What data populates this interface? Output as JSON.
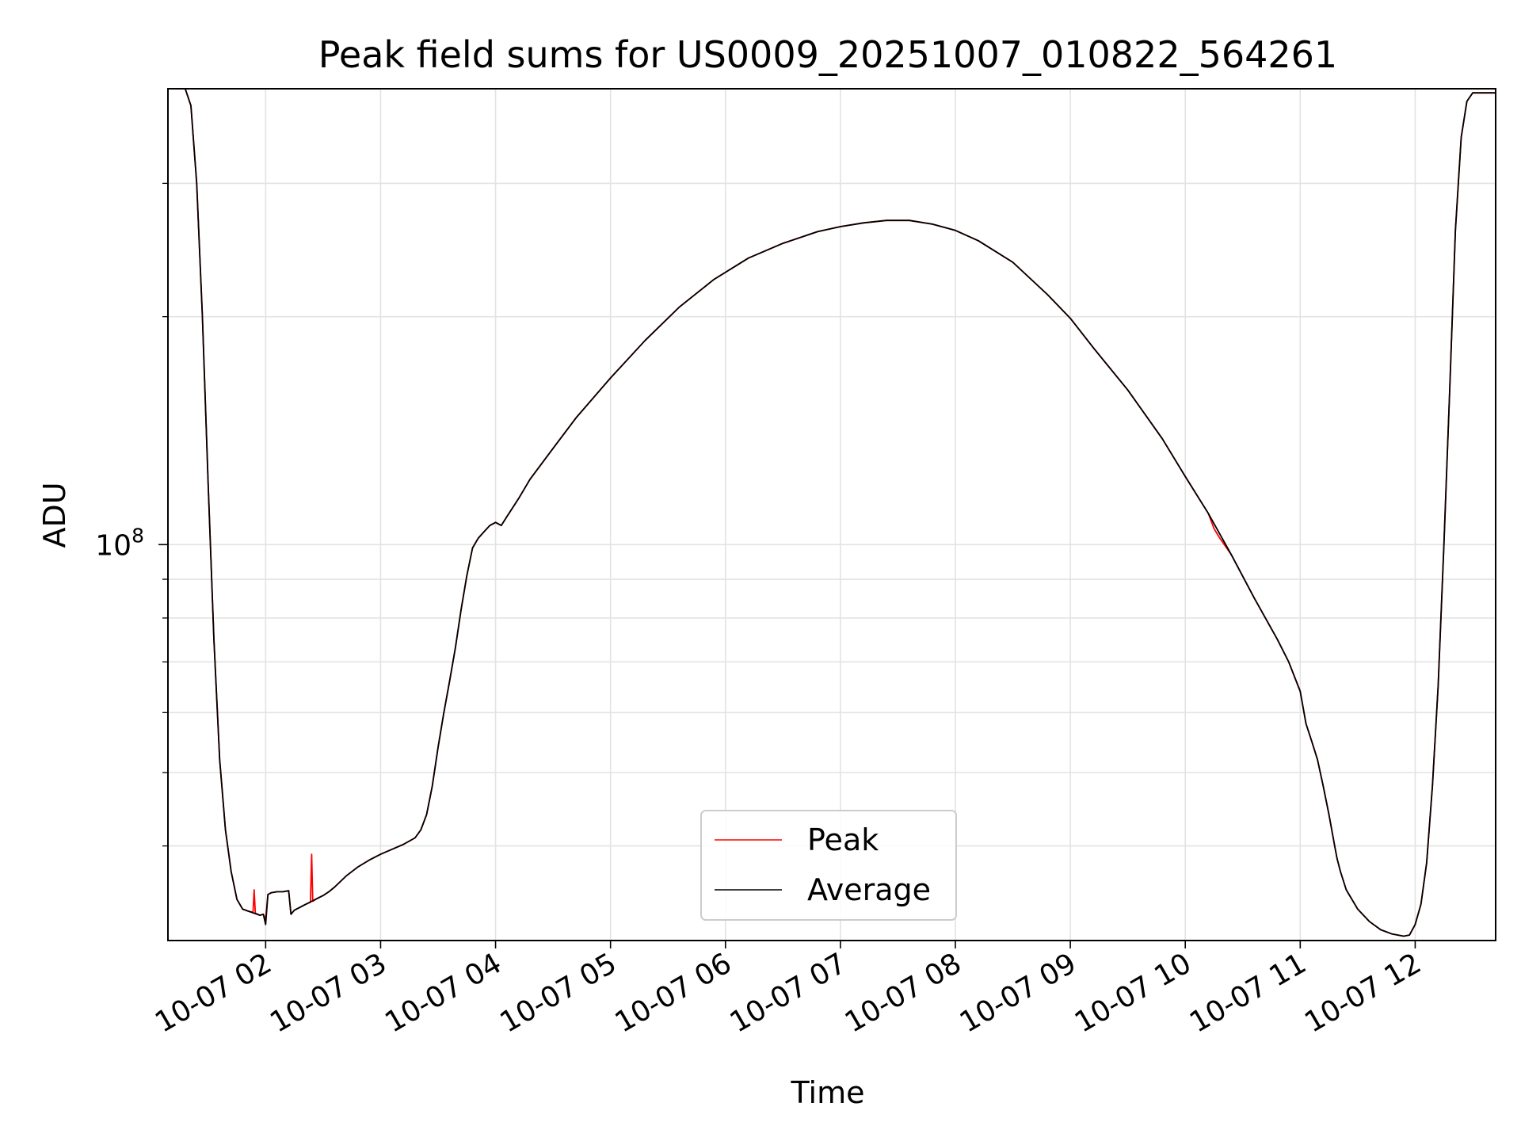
{
  "chart_data": {
    "type": "line",
    "title": "Peak field sums for US0009_20251007_010822_564261",
    "xlabel": "Time",
    "ylabel": "ADU",
    "yscale": "log",
    "ylim": [
      30000000,
      400000000
    ],
    "grid": true,
    "legend_position": "lower center",
    "xlim": [
      1.15,
      12.7
    ],
    "x_ticks": [
      {
        "value": 2,
        "label": "10-07 02"
      },
      {
        "value": 3,
        "label": "10-07 03"
      },
      {
        "value": 4,
        "label": "10-07 04"
      },
      {
        "value": 5,
        "label": "10-07 05"
      },
      {
        "value": 6,
        "label": "10-07 06"
      },
      {
        "value": 7,
        "label": "10-07 07"
      },
      {
        "value": 8,
        "label": "10-07 08"
      },
      {
        "value": 9,
        "label": "10-07 09"
      },
      {
        "value": 10,
        "label": "10-07 10"
      },
      {
        "value": 11,
        "label": "10-07 11"
      },
      {
        "value": 12,
        "label": "10-07 12"
      }
    ],
    "y_major_ticks": [
      {
        "value": 100000000,
        "base": "10",
        "exp": "8"
      }
    ],
    "y_minor_ticks": [
      40000000,
      50000000,
      60000000,
      70000000,
      80000000,
      90000000,
      200000000,
      300000000
    ],
    "series": [
      {
        "name": "Average",
        "color": "#000000",
        "x": [
          1.15,
          1.3,
          1.35,
          1.4,
          1.45,
          1.5,
          1.55,
          1.6,
          1.65,
          1.7,
          1.75,
          1.8,
          1.85,
          1.9,
          1.95,
          1.98,
          2.0,
          2.02,
          2.05,
          2.1,
          2.15,
          2.2,
          2.22,
          2.25,
          2.3,
          2.35,
          2.4,
          2.45,
          2.5,
          2.55,
          2.6,
          2.7,
          2.8,
          2.9,
          3.0,
          3.1,
          3.2,
          3.3,
          3.35,
          3.4,
          3.45,
          3.5,
          3.55,
          3.6,
          3.65,
          3.7,
          3.75,
          3.8,
          3.85,
          3.9,
          3.95,
          4.0,
          4.05,
          4.1,
          4.2,
          4.3,
          4.5,
          4.7,
          5.0,
          5.3,
          5.6,
          5.9,
          6.2,
          6.5,
          6.8,
          7.0,
          7.2,
          7.4,
          7.6,
          7.8,
          8.0,
          8.2,
          8.5,
          8.8,
          9.0,
          9.2,
          9.5,
          9.8,
          10.0,
          10.2,
          10.4,
          10.6,
          10.8,
          10.9,
          11.0,
          11.05,
          11.1,
          11.15,
          11.2,
          11.25,
          11.3,
          11.32,
          11.35,
          11.4,
          11.5,
          11.6,
          11.7,
          11.8,
          11.9,
          11.95,
          12.0,
          12.05,
          12.1,
          12.15,
          12.2,
          12.25,
          12.3,
          12.35,
          12.4,
          12.45,
          12.5,
          12.55,
          12.6,
          12.7
        ],
        "y": [
          400000000,
          400000000,
          380000000,
          300000000,
          200000000,
          120000000,
          75000000,
          52000000,
          42000000,
          37000000,
          34000000,
          33000000,
          32800000,
          32600000,
          32400000,
          32500000,
          31500000,
          34500000,
          34700000,
          34800000,
          34800000,
          34900000,
          32500000,
          32900000,
          33200000,
          33500000,
          33800000,
          34100000,
          34400000,
          34800000,
          35300000,
          36500000,
          37500000,
          38300000,
          39000000,
          39600000,
          40200000,
          41000000,
          42000000,
          44000000,
          48000000,
          54000000,
          60000000,
          66000000,
          73000000,
          82000000,
          91000000,
          99000000,
          102000000,
          104000000,
          106000000,
          107000000,
          106000000,
          109000000,
          115000000,
          122000000,
          134000000,
          147000000,
          166000000,
          186000000,
          206000000,
          224000000,
          239000000,
          250000000,
          259000000,
          263000000,
          266000000,
          268000000,
          268000000,
          265000000,
          260000000,
          252000000,
          236000000,
          214000000,
          199000000,
          182000000,
          160000000,
          138000000,
          123000000,
          110000000,
          97000000,
          85000000,
          75000000,
          70000000,
          64000000,
          58000000,
          55000000,
          52000000,
          48000000,
          44000000,
          40000000,
          38500000,
          37000000,
          35000000,
          33000000,
          31800000,
          31000000,
          30600000,
          30400000,
          30500000,
          31500000,
          33500000,
          38000000,
          48000000,
          65000000,
          100000000,
          160000000,
          260000000,
          345000000,
          385000000,
          395000000,
          395000000,
          395000000,
          395000000
        ]
      },
      {
        "name": "Peak",
        "color": "#ff0000",
        "x": [
          1.15,
          1.3,
          1.35,
          1.4,
          1.45,
          1.5,
          1.55,
          1.6,
          1.65,
          1.7,
          1.75,
          1.8,
          1.85,
          1.89,
          1.9,
          1.91,
          1.95,
          1.98,
          2.0,
          2.02,
          2.05,
          2.1,
          2.15,
          2.2,
          2.22,
          2.25,
          2.3,
          2.35,
          2.39,
          2.4,
          2.41,
          2.45,
          2.5,
          2.55,
          2.6,
          2.7,
          2.8,
          2.9,
          3.0,
          3.1,
          3.2,
          3.3,
          3.35,
          3.4,
          3.45,
          3.5,
          3.55,
          3.6,
          3.65,
          3.7,
          3.75,
          3.8,
          3.85,
          3.9,
          3.95,
          4.0,
          4.05,
          4.1,
          4.2,
          4.3,
          4.5,
          4.7,
          5.0,
          5.3,
          5.6,
          5.9,
          6.2,
          6.5,
          6.8,
          7.0,
          7.2,
          7.4,
          7.6,
          7.8,
          8.0,
          8.2,
          8.5,
          8.8,
          9.0,
          9.2,
          9.5,
          9.8,
          10.0,
          10.2,
          10.25,
          10.3,
          10.4,
          10.6,
          10.8,
          10.9,
          11.0,
          11.05,
          11.1,
          11.15,
          11.2,
          11.25,
          11.3,
          11.32,
          11.35,
          11.4,
          11.5,
          11.6,
          11.7,
          11.8,
          11.9,
          11.95,
          12.0,
          12.05,
          12.1,
          12.15,
          12.2,
          12.25,
          12.3,
          12.35,
          12.4,
          12.45,
          12.5,
          12.55,
          12.6,
          12.7
        ],
        "y": [
          400000000,
          400000000,
          380000000,
          300000000,
          200000000,
          120000000,
          75000000,
          52000000,
          42000000,
          37000000,
          34000000,
          33000000,
          32800000,
          32700000,
          35000000,
          32600000,
          32400000,
          32500000,
          32000000,
          34500000,
          34700000,
          34800000,
          34800000,
          34900000,
          32500000,
          32900000,
          33200000,
          33500000,
          33700000,
          39000000,
          33800000,
          34100000,
          34400000,
          34800000,
          35300000,
          36500000,
          37500000,
          38300000,
          39000000,
          39600000,
          40200000,
          41000000,
          42000000,
          44000000,
          48000000,
          54000000,
          60000000,
          66000000,
          73000000,
          82000000,
          91000000,
          99000000,
          102000000,
          104000000,
          106000000,
          107000000,
          106000000,
          109000000,
          115000000,
          122000000,
          134000000,
          147000000,
          166000000,
          186000000,
          206000000,
          224000000,
          239000000,
          250000000,
          259000000,
          263000000,
          266000000,
          268000000,
          268000000,
          265000000,
          260000000,
          252000000,
          236000000,
          214000000,
          199000000,
          182000000,
          160000000,
          138000000,
          123000000,
          110000000,
          105000000,
          102000000,
          97000000,
          85000000,
          75000000,
          70000000,
          64000000,
          58000000,
          55000000,
          52000000,
          48000000,
          44000000,
          40000000,
          38500000,
          37000000,
          35000000,
          33000000,
          31800000,
          31000000,
          30600000,
          30400000,
          30500000,
          31500000,
          33500000,
          38000000,
          48000000,
          65000000,
          100000000,
          160000000,
          260000000,
          345000000,
          385000000,
          395000000,
          395000000,
          395000000,
          395000000
        ]
      }
    ],
    "legend": [
      {
        "label": "Peak",
        "color": "#ff0000"
      },
      {
        "label": "Average",
        "color": "#000000"
      }
    ]
  }
}
